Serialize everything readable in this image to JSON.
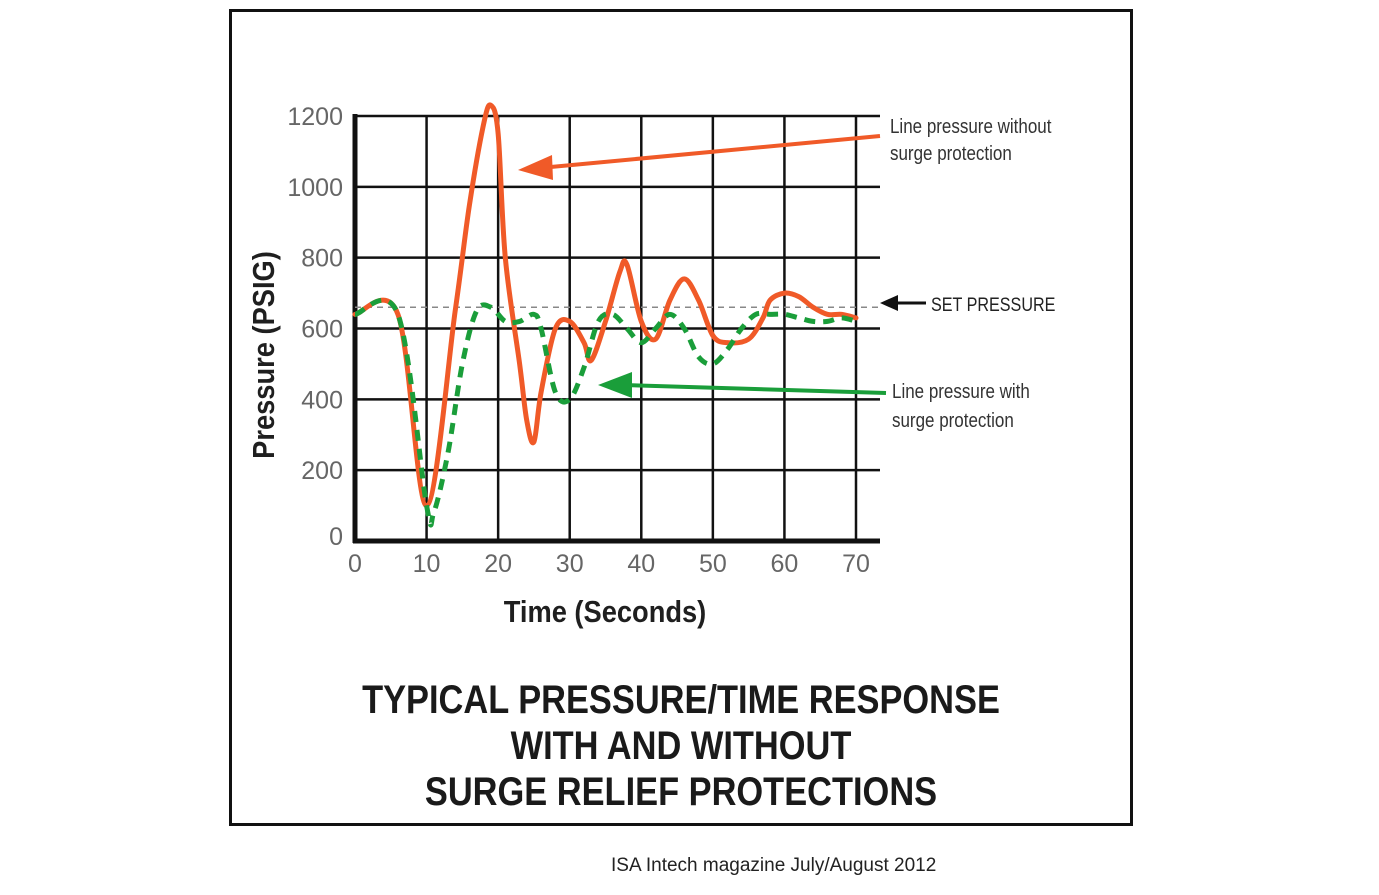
{
  "chart_data": {
    "type": "line",
    "title": [
      "TYPICAL PRESSURE/TIME RESPONSE",
      "WITH AND WITHOUT",
      "SURGE RELIEF PROTECTIONS"
    ],
    "xlabel": "Time (Seconds)",
    "ylabel": "Pressure (PSIG)",
    "xlim": [
      0,
      70
    ],
    "ylim": [
      0,
      1200
    ],
    "x_ticks": [
      "0",
      "10",
      "20",
      "30",
      "40",
      "50",
      "60",
      "70"
    ],
    "y_ticks": [
      "0",
      "200",
      "400",
      "600",
      "800",
      "1000",
      "1200"
    ],
    "grid": true,
    "set_pressure": 660,
    "set_pressure_label": "SET PRESSURE",
    "series": [
      {
        "name": "Line pressure without surge protection",
        "color": "#f05a28",
        "style": "solid",
        "points": [
          [
            0,
            640
          ],
          [
            6,
            640
          ],
          [
            10,
            100
          ],
          [
            14,
            650
          ],
          [
            16,
            950
          ],
          [
            18,
            1180
          ],
          [
            19,
            1230
          ],
          [
            20,
            1150
          ],
          [
            21,
            800
          ],
          [
            23,
            500
          ],
          [
            24,
            340
          ],
          [
            25,
            280
          ],
          [
            26,
            420
          ],
          [
            28,
            600
          ],
          [
            30,
            620
          ],
          [
            32,
            560
          ],
          [
            33,
            510
          ],
          [
            35,
            620
          ],
          [
            37,
            760
          ],
          [
            38,
            780
          ],
          [
            40,
            620
          ],
          [
            42,
            570
          ],
          [
            44,
            680
          ],
          [
            46,
            740
          ],
          [
            48,
            680
          ],
          [
            50,
            580
          ],
          [
            52,
            560
          ],
          [
            55,
            570
          ],
          [
            57,
            630
          ],
          [
            58,
            680
          ],
          [
            60,
            700
          ],
          [
            62,
            690
          ],
          [
            64,
            660
          ],
          [
            66,
            640
          ],
          [
            68,
            640
          ],
          [
            70,
            630
          ]
        ]
      },
      {
        "name": "Line pressure with surge protection",
        "color": "#1a9e3a",
        "style": "dashed",
        "points": [
          [
            0,
            640
          ],
          [
            6,
            640
          ],
          [
            10,
            100
          ],
          [
            11,
            80
          ],
          [
            13,
            250
          ],
          [
            15,
            500
          ],
          [
            17,
            650
          ],
          [
            19,
            660
          ],
          [
            21,
            620
          ],
          [
            23,
            620
          ],
          [
            25,
            640
          ],
          [
            26,
            600
          ],
          [
            28,
            420
          ],
          [
            30,
            400
          ],
          [
            32,
            490
          ],
          [
            34,
            620
          ],
          [
            36,
            640
          ],
          [
            38,
            600
          ],
          [
            40,
            560
          ],
          [
            42,
            600
          ],
          [
            44,
            640
          ],
          [
            46,
            600
          ],
          [
            48,
            520
          ],
          [
            50,
            500
          ],
          [
            52,
            540
          ],
          [
            54,
            600
          ],
          [
            56,
            640
          ],
          [
            58,
            640
          ],
          [
            60,
            640
          ],
          [
            62,
            630
          ],
          [
            64,
            620
          ],
          [
            66,
            620
          ],
          [
            68,
            630
          ],
          [
            70,
            620
          ]
        ]
      }
    ],
    "annotations": {
      "without": [
        "Line pressure without",
        "surge protection"
      ],
      "with": [
        "Line pressure with",
        "surge protection"
      ]
    }
  },
  "source_text": "ISA Intech magazine July/August 2012"
}
